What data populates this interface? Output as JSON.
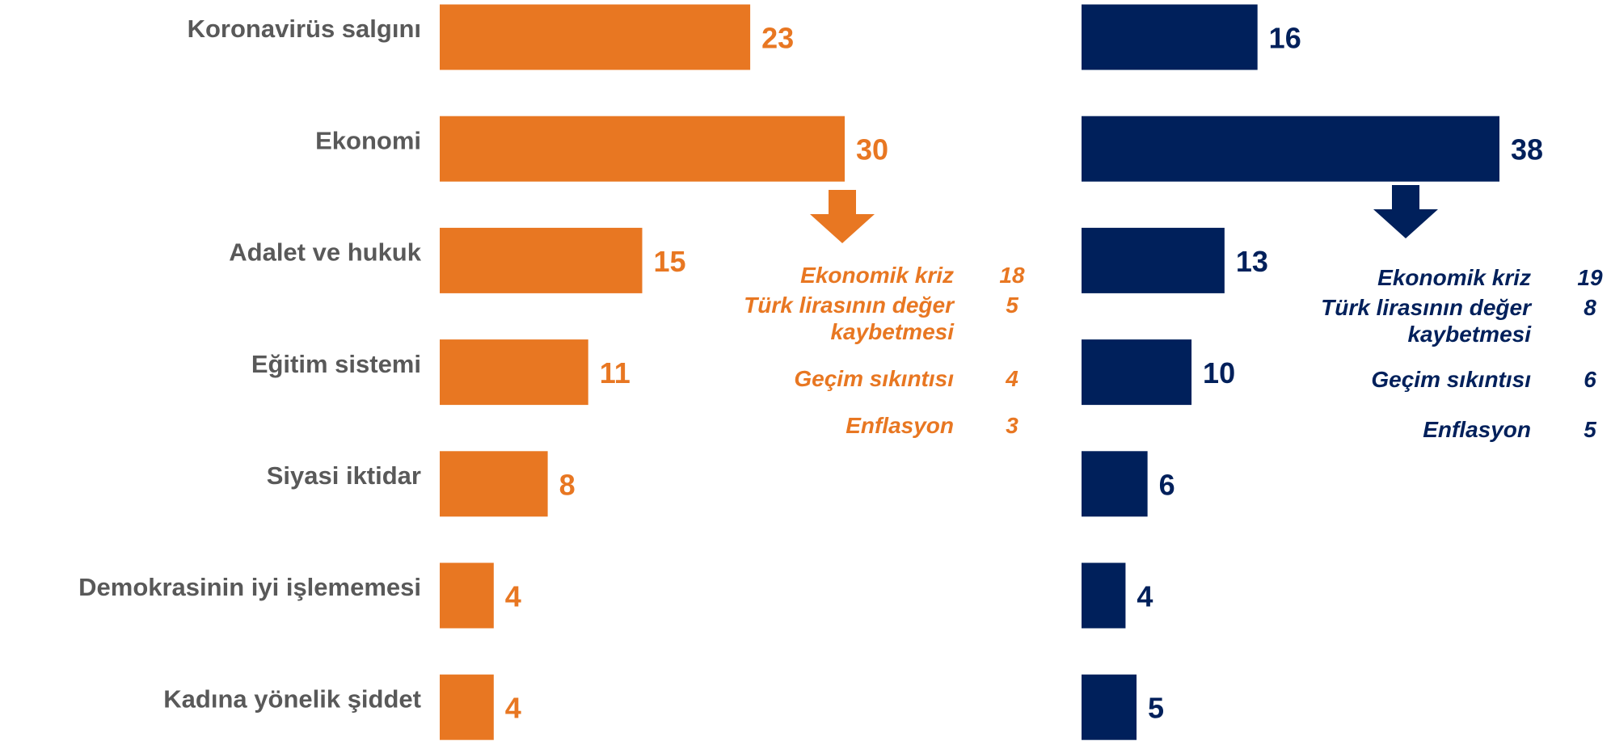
{
  "chart_data": [
    {
      "type": "bar",
      "orientation": "horizontal",
      "color": "#E87722",
      "categories": [
        "Koronavirüs salgını",
        "Ekonomi",
        "Adalet ve hukuk",
        "Eğitim sistemi",
        "Siyasi iktidar",
        "Demokrasinin iyi işlememesi",
        "Kadına yönelik şiddet"
      ],
      "values": [
        23,
        30,
        15,
        11,
        8,
        4,
        4
      ],
      "breakdown": {
        "labels": [
          "Ekonomik kriz",
          "Türk lirasının değer kaybetmesi",
          "Geçim sıkıntısı",
          "Enflasyon"
        ],
        "values": [
          18,
          5,
          4,
          3
        ]
      }
    },
    {
      "type": "bar",
      "orientation": "horizontal",
      "color": "#00205B",
      "values": [
        16,
        38,
        13,
        10,
        6,
        4,
        5
      ],
      "breakdown": {
        "labels": [
          "Ekonomik kriz",
          "Türk lirasının değer kaybetmesi",
          "Geçim sıkıntısı",
          "Enflasyon"
        ],
        "values": [
          19,
          8,
          6,
          5
        ]
      }
    }
  ]
}
